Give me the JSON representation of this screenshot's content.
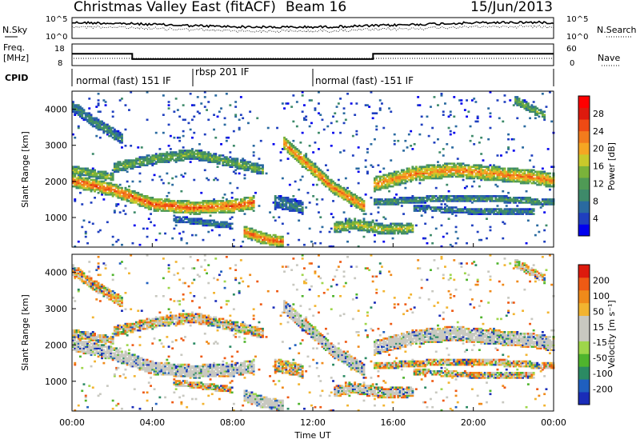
{
  "header": {
    "title": "Christmas Valley East (fitACF)",
    "beam": "Beam 16",
    "date": "15/Jun/2013"
  },
  "status_panels": {
    "nsky_label": "N.Sky",
    "nsearch_label": "N.Search",
    "noise_ticks": [
      "10^5",
      "10^0"
    ],
    "freq_label": "Freq.",
    "freq_unit": "[MHz]",
    "freq_ticks": [
      "18",
      "8"
    ],
    "nave_label": "Nave",
    "nave_ticks": [
      "60",
      "0"
    ],
    "cpid_label": "CPID",
    "programs": [
      {
        "name": "normal (fast) 151 IF",
        "start_h": 0,
        "end_h": 6
      },
      {
        "name": "rbsp 201 IF",
        "start_h": 6,
        "end_h": 12
      },
      {
        "name": "normal (fast) -151 IF",
        "start_h": 12,
        "end_h": 24
      }
    ],
    "freq_series": {
      "x_h": [
        0,
        3,
        3,
        15,
        15,
        24
      ],
      "y_mhz": [
        13.5,
        13.5,
        11,
        11,
        13.5,
        13.5
      ]
    }
  },
  "axes": {
    "ylabel": "Slant Range [km]",
    "yticks": [
      "4000",
      "3000",
      "2000",
      "1000"
    ],
    "xticks": [
      "00:00",
      "04:00",
      "08:00",
      "12:00",
      "16:00",
      "20:00",
      "00:00"
    ],
    "xlabel": "Time UT"
  },
  "colorbars": {
    "power": {
      "label": "Power [dB]",
      "ticks": [
        "28",
        "24",
        "20",
        "16",
        "12",
        "8",
        "4"
      ],
      "colors": [
        "#0000ee",
        "#1f3fbf",
        "#2a6aa0",
        "#3e8a6a",
        "#4f9a55",
        "#7ab33a",
        "#c9c92b",
        "#f5a623",
        "#f27b1d",
        "#ee4a14",
        "#dd1a0d",
        "#ff0000"
      ]
    },
    "velocity": {
      "label": "Velocity [m s⁻¹]",
      "ticks": [
        "200",
        "100",
        "50",
        "15",
        "-15",
        "-50",
        "-100",
        "-200"
      ],
      "colors": [
        "#1a2cb8",
        "#1f5fbf",
        "#2b8a63",
        "#4fb42d",
        "#9ed64a",
        "#c8c8c0",
        "#c8c8c0",
        "#f2b430",
        "#f08a1a",
        "#ee5a14",
        "#dd1a0d"
      ]
    }
  },
  "chart_data": {
    "type": "heatmap",
    "title": "Christmas Valley East (fitACF)",
    "xlabel": "Time UT",
    "ylabel": "Slant Range [km]",
    "x_range_h": [
      0,
      24
    ],
    "y_range_km": [
      180,
      4500
    ],
    "echo_bands": [
      {
        "x": [
          0,
          2,
          4,
          6,
          8,
          9
        ],
        "y": [
          2000,
          1750,
          1350,
          1250,
          1300,
          1400
        ],
        "w": 180,
        "level": 0.82
      },
      {
        "x": [
          2,
          4,
          6,
          8,
          9.5
        ],
        "y": [
          2350,
          2600,
          2750,
          2500,
          2300
        ],
        "w": 140,
        "level": 0.45
      },
      {
        "x": [
          0,
          1,
          2
        ],
        "y": [
          2300,
          2200,
          2100
        ],
        "w": 120,
        "level": 0.5
      },
      {
        "x": [
          0,
          1,
          2.5
        ],
        "y": [
          4050,
          3650,
          3150
        ],
        "w": 150,
        "level": 0.3
      },
      {
        "x": [
          10.5,
          12,
          13,
          14.5
        ],
        "y": [
          3050,
          2300,
          1800,
          1300
        ],
        "w": 170,
        "level": 0.78
      },
      {
        "x": [
          13,
          14,
          15.5,
          17
        ],
        "y": [
          700,
          800,
          650,
          700
        ],
        "w": 150,
        "level": 0.55
      },
      {
        "x": [
          8.5,
          9.5,
          10.5
        ],
        "y": [
          600,
          400,
          300
        ],
        "w": 160,
        "level": 0.82
      },
      {
        "x": [
          15,
          17,
          19,
          21,
          23,
          24
        ],
        "y": [
          1900,
          2200,
          2300,
          2200,
          2100,
          2000
        ],
        "w": 200,
        "level": 0.74
      },
      {
        "x": [
          15,
          18,
          21,
          24
        ],
        "y": [
          1400,
          1500,
          1500,
          1400
        ],
        "w": 90,
        "level": 0.35
      },
      {
        "x": [
          17,
          20,
          23
        ],
        "y": [
          1250,
          1150,
          1150
        ],
        "w": 80,
        "level": 0.3
      },
      {
        "x": [
          22,
          23.5
        ],
        "y": [
          4250,
          3800
        ],
        "w": 120,
        "level": 0.45
      },
      {
        "x": [
          10,
          11.5
        ],
        "y": [
          1450,
          1250
        ],
        "w": 180,
        "level": 0.25
      },
      {
        "x": [
          5,
          6.5,
          8
        ],
        "y": [
          950,
          850,
          750
        ],
        "w": 90,
        "level": 0.25
      }
    ]
  }
}
